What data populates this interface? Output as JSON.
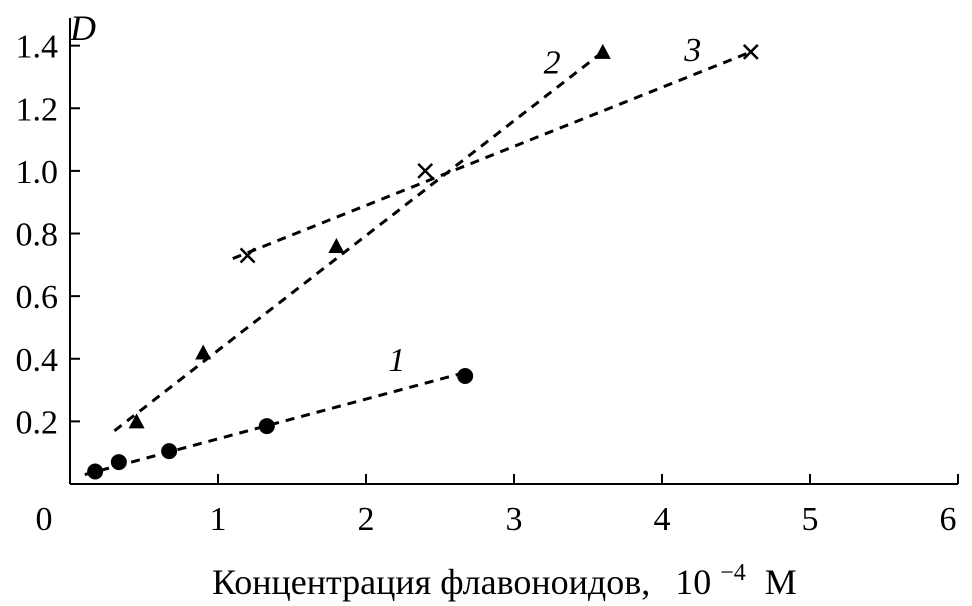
{
  "chart_data": {
    "type": "scatter",
    "xlabel": "Концентрация флавоноидов,",
    "xlabel_unit_base": "10",
    "xlabel_unit_exp": "−4",
    "xlabel_unit_suffix": "М",
    "ylabel": "D",
    "xlim": [
      0,
      6
    ],
    "ylim": [
      0,
      1.45
    ],
    "x_ticks": [
      0,
      1,
      2,
      3,
      4,
      5,
      6
    ],
    "y_ticks": [
      0.2,
      0.4,
      0.6,
      0.8,
      1.0,
      1.2,
      1.4
    ],
    "x_tick_labels": [
      "0",
      "1",
      "2",
      "3",
      "4",
      "5",
      "6"
    ],
    "y_tick_labels": [
      "0.2",
      "0.4",
      "0.6",
      "0.8",
      "1.0",
      "1.2",
      "1.4"
    ],
    "grid": false,
    "series": [
      {
        "label": "1",
        "marker": "circle",
        "points": [
          [
            0.17,
            0.04
          ],
          [
            0.33,
            0.07
          ],
          [
            0.67,
            0.105
          ],
          [
            1.33,
            0.185
          ],
          [
            2.67,
            0.345
          ]
        ],
        "fit": [
          [
            0.1,
            0.03
          ],
          [
            2.7,
            0.36
          ]
        ],
        "label_pos": [
          2.15,
          0.4
        ]
      },
      {
        "label": "2",
        "marker": "triangle",
        "points": [
          [
            0.45,
            0.2
          ],
          [
            0.9,
            0.42
          ],
          [
            1.8,
            0.76
          ],
          [
            3.6,
            1.38
          ]
        ],
        "fit": [
          [
            0.3,
            0.17
          ],
          [
            3.6,
            1.38
          ]
        ],
        "label_pos": [
          3.2,
          1.35
        ]
      },
      {
        "label": "3",
        "marker": "x",
        "points": [
          [
            1.2,
            0.73
          ],
          [
            2.4,
            1.0
          ],
          [
            4.6,
            1.38
          ]
        ],
        "fit": [
          [
            1.1,
            0.72
          ],
          [
            4.6,
            1.38
          ]
        ],
        "label_pos": [
          4.15,
          1.39
        ]
      }
    ]
  }
}
